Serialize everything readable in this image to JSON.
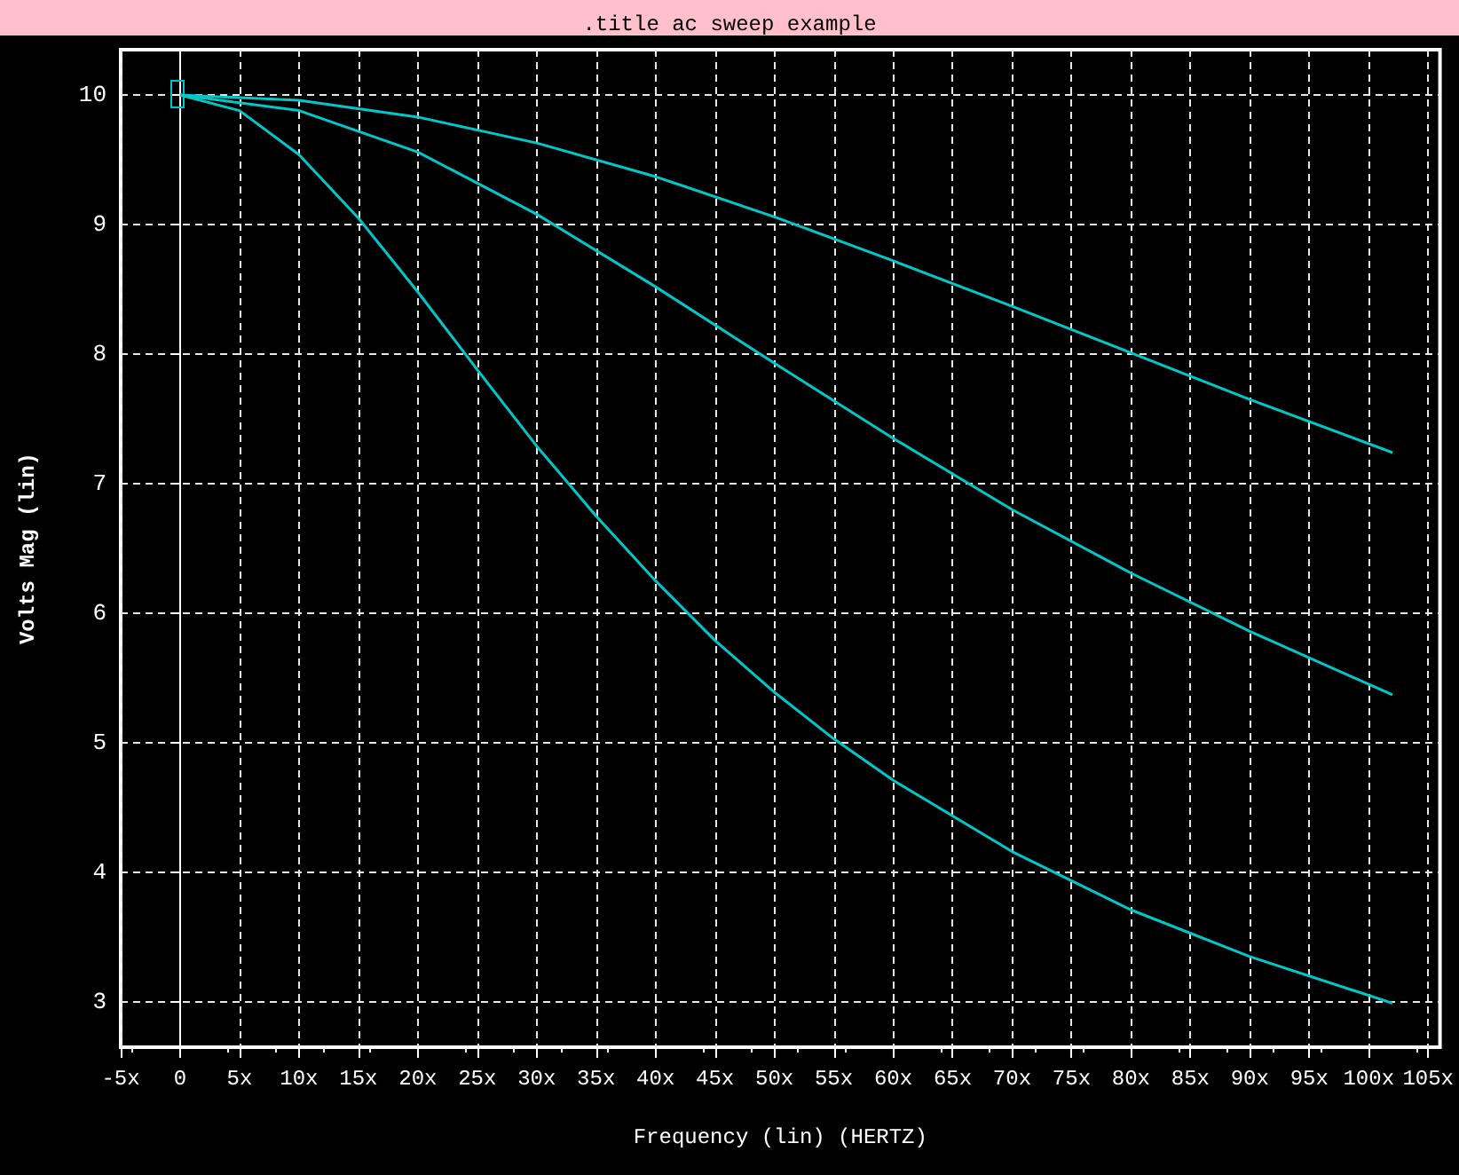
{
  "chart_data": {
    "type": "line",
    "title": ".title ac sweep example",
    "xlabel": "Frequency (lin) (HERTZ)",
    "ylabel": "Volts Mag (lin)",
    "xlim": [
      -5,
      106
    ],
    "xticks": [
      {
        "value": -5,
        "label": "-5x"
      },
      0,
      {
        "value": 5,
        "label": "5x"
      },
      {
        "value": 10,
        "label": "10x"
      },
      {
        "value": 15,
        "label": "15x"
      },
      {
        "value": 20,
        "label": "20x"
      },
      {
        "value": 25,
        "label": "25x"
      },
      {
        "value": 30,
        "label": "30x"
      },
      {
        "value": 35,
        "label": "35x"
      },
      {
        "value": 40,
        "label": "40x"
      },
      {
        "value": 45,
        "label": "45x"
      },
      {
        "value": 50,
        "label": "50x"
      },
      {
        "value": 55,
        "label": "55x"
      },
      {
        "value": 60,
        "label": "60x"
      },
      {
        "value": 65,
        "label": "65x"
      },
      {
        "value": 70,
        "label": "70x"
      },
      {
        "value": 75,
        "label": "75x"
      },
      {
        "value": 80,
        "label": "80x"
      },
      {
        "value": 85,
        "label": "85x"
      },
      {
        "value": 90,
        "label": "90x"
      },
      {
        "value": 95,
        "label": "95x"
      },
      {
        "value": 100,
        "label": "100x"
      },
      {
        "value": 105,
        "label": "105x"
      }
    ],
    "ylim": [
      2.65,
      10.35
    ],
    "yticks": [
      3,
      4,
      5,
      6,
      7,
      8,
      9,
      10
    ],
    "grid": true,
    "marker": "none",
    "series": [
      {
        "color": "#00c8c8",
        "x": [
          0,
          10,
          20,
          30,
          40,
          50,
          60,
          70,
          80,
          90,
          102
        ],
        "values": [
          10,
          9.96,
          9.83,
          9.63,
          9.37,
          9.06,
          8.72,
          8.37,
          8.01,
          7.65,
          7.24
        ]
      },
      {
        "color": "#00c8c8",
        "x": [
          0,
          10,
          20,
          30,
          40,
          50,
          60,
          70,
          80,
          90,
          102
        ],
        "values": [
          10,
          9.88,
          9.56,
          9.08,
          8.52,
          7.93,
          7.35,
          6.8,
          6.31,
          5.86,
          5.37
        ]
      },
      {
        "color": "#00c8c8",
        "x": [
          0,
          5,
          10,
          15,
          20,
          25,
          30,
          35,
          40,
          45,
          50,
          55,
          60,
          70,
          80,
          90,
          102
        ],
        "values": [
          10,
          9.88,
          9.54,
          9.05,
          8.48,
          7.88,
          7.29,
          6.75,
          6.25,
          5.79,
          5.39,
          5.03,
          4.71,
          4.16,
          3.71,
          3.35,
          2.99
        ]
      }
    ]
  }
}
